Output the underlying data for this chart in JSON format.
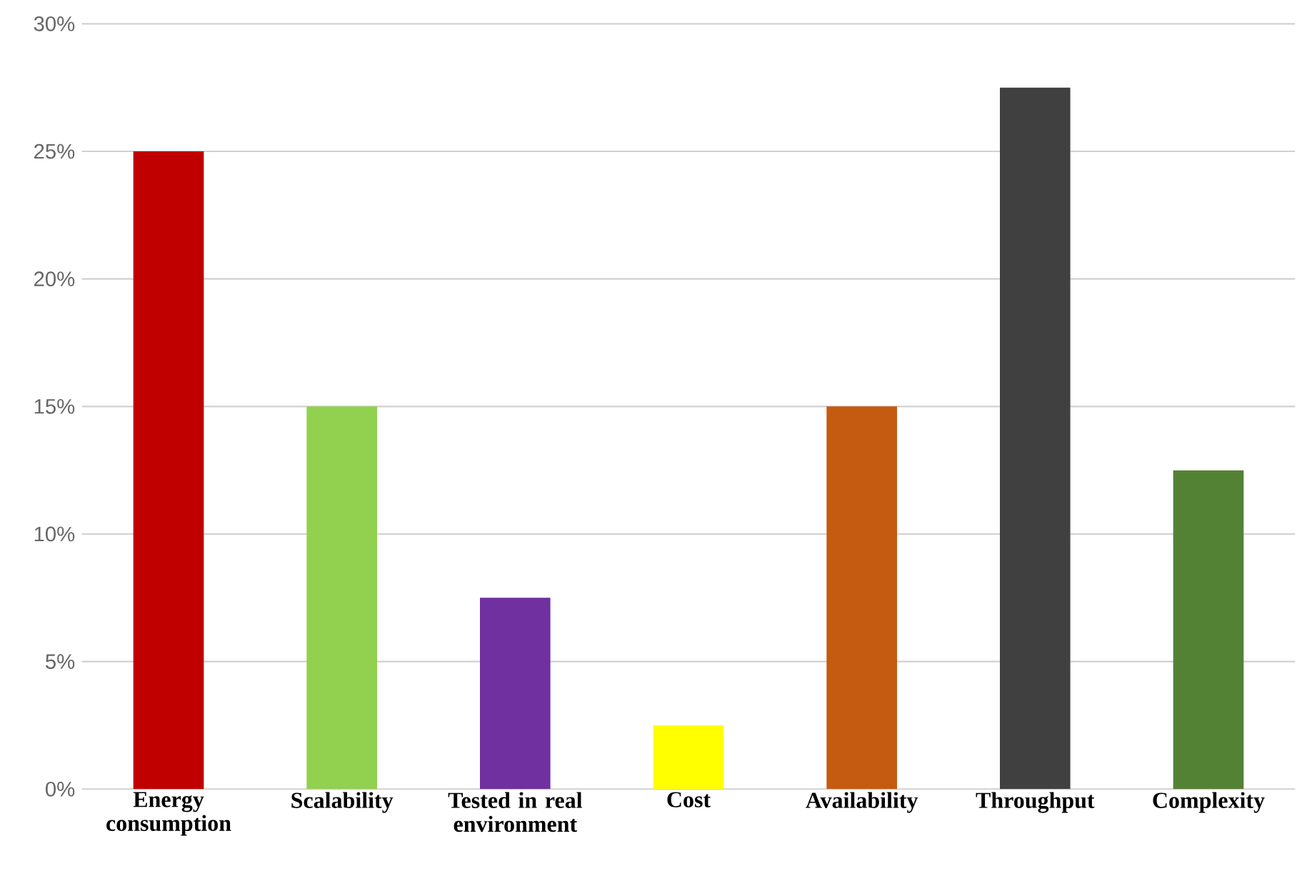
{
  "chart_data": {
    "type": "bar",
    "categories": [
      "Energy consumption",
      "Scalability",
      "Tested in real environment",
      "Cost",
      "Availability",
      "Throughput",
      "Complexity"
    ],
    "values": [
      25,
      15,
      7.5,
      2.5,
      15,
      27.5,
      12.5
    ],
    "colors": [
      "#c00000",
      "#92d050",
      "#7030a0",
      "#ffff00",
      "#c55a11",
      "#404040",
      "#548235"
    ],
    "ylim": [
      0,
      30
    ],
    "yticks": [
      {
        "value": 0,
        "label": "0%"
      },
      {
        "value": 5,
        "label": "5%"
      },
      {
        "value": 10,
        "label": "10%"
      },
      {
        "value": 15,
        "label": "15%"
      },
      {
        "value": 20,
        "label": "20%"
      },
      {
        "value": 25,
        "label": "25%"
      },
      {
        "value": 30,
        "label": "30%"
      }
    ],
    "grid": "y"
  }
}
